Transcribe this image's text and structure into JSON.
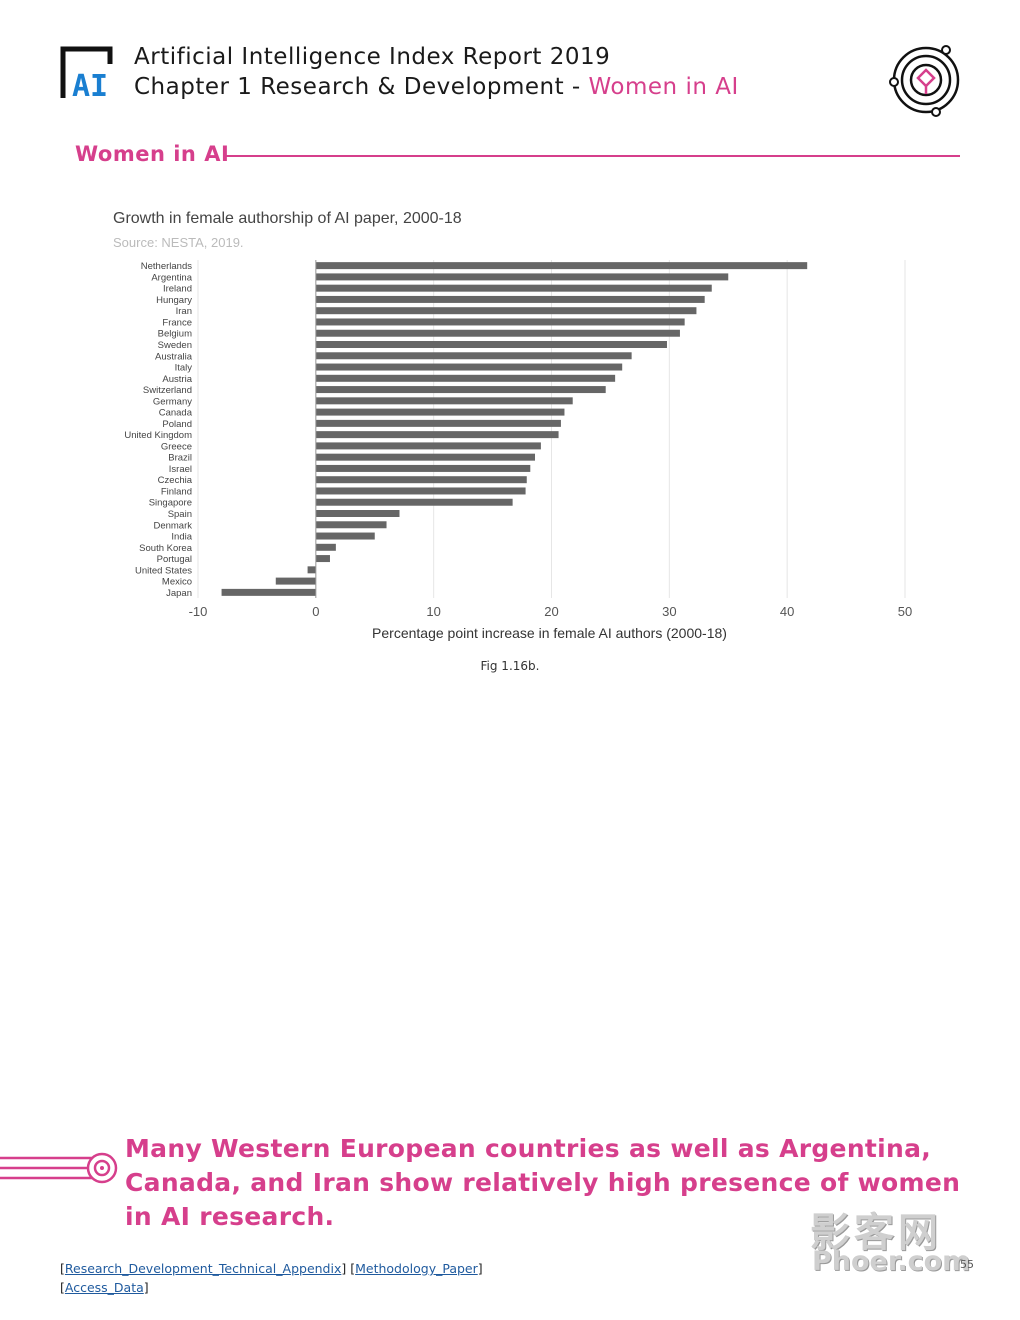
{
  "header": {
    "logo_text": "AI",
    "report_title": "Artificial Intelligence Index Report 2019",
    "chapter": "Chapter 1 Research & Development - ",
    "chapter_topic": "Women in AI"
  },
  "section": {
    "heading": "Women in AI"
  },
  "colors": {
    "accent": "#d63f8c",
    "bar": "#666666",
    "grid": "#e6e6e6"
  },
  "chart_data": {
    "type": "bar",
    "orientation": "horizontal",
    "title": "Growth in female authorship of AI paper, 2000-18",
    "subtitle": "Source: NESTA, 2019.",
    "xlabel": "Percentage point increase in female AI authors (2000-18)",
    "ylabel": "",
    "xlim": [
      -10,
      50
    ],
    "xticks": [
      "-10",
      "0",
      "10",
      "20",
      "30",
      "40",
      "50"
    ],
    "grid": true,
    "categories": [
      "Netherlands",
      "Argentina",
      "Ireland",
      "Hungary",
      "Iran",
      "France",
      "Belgium",
      "Sweden",
      "Australia",
      "Italy",
      "Austria",
      "Switzerland",
      "Germany",
      "Canada",
      "Poland",
      "United Kingdom",
      "Greece",
      "Brazil",
      "Israel",
      "Czechia",
      "Finland",
      "Singapore",
      "Spain",
      "Denmark",
      "India",
      "South Korea",
      "Portugal",
      "United States",
      "Mexico",
      "Japan"
    ],
    "values": [
      41.7,
      35.0,
      33.6,
      33.0,
      32.3,
      31.3,
      30.9,
      29.8,
      26.8,
      26.0,
      25.4,
      24.6,
      21.8,
      21.1,
      20.8,
      20.6,
      19.1,
      18.6,
      18.2,
      17.9,
      17.8,
      16.7,
      7.1,
      6.0,
      5.0,
      1.7,
      1.2,
      -0.7,
      -3.4,
      -8.0
    ]
  },
  "figure": {
    "caption": "Fig 1.16b."
  },
  "quote": {
    "text": "Many Western European countries as well as Argentina, Canada, and Iran show relatively high presence of women in AI research."
  },
  "links": {
    "appendix": "Research_Development_Technical_Appendix",
    "methodology": "Methodology_Paper",
    "access": "Access_Data"
  },
  "watermark": {
    "cn": "影客网",
    "en": "Phoer.com"
  },
  "page_number": "55"
}
